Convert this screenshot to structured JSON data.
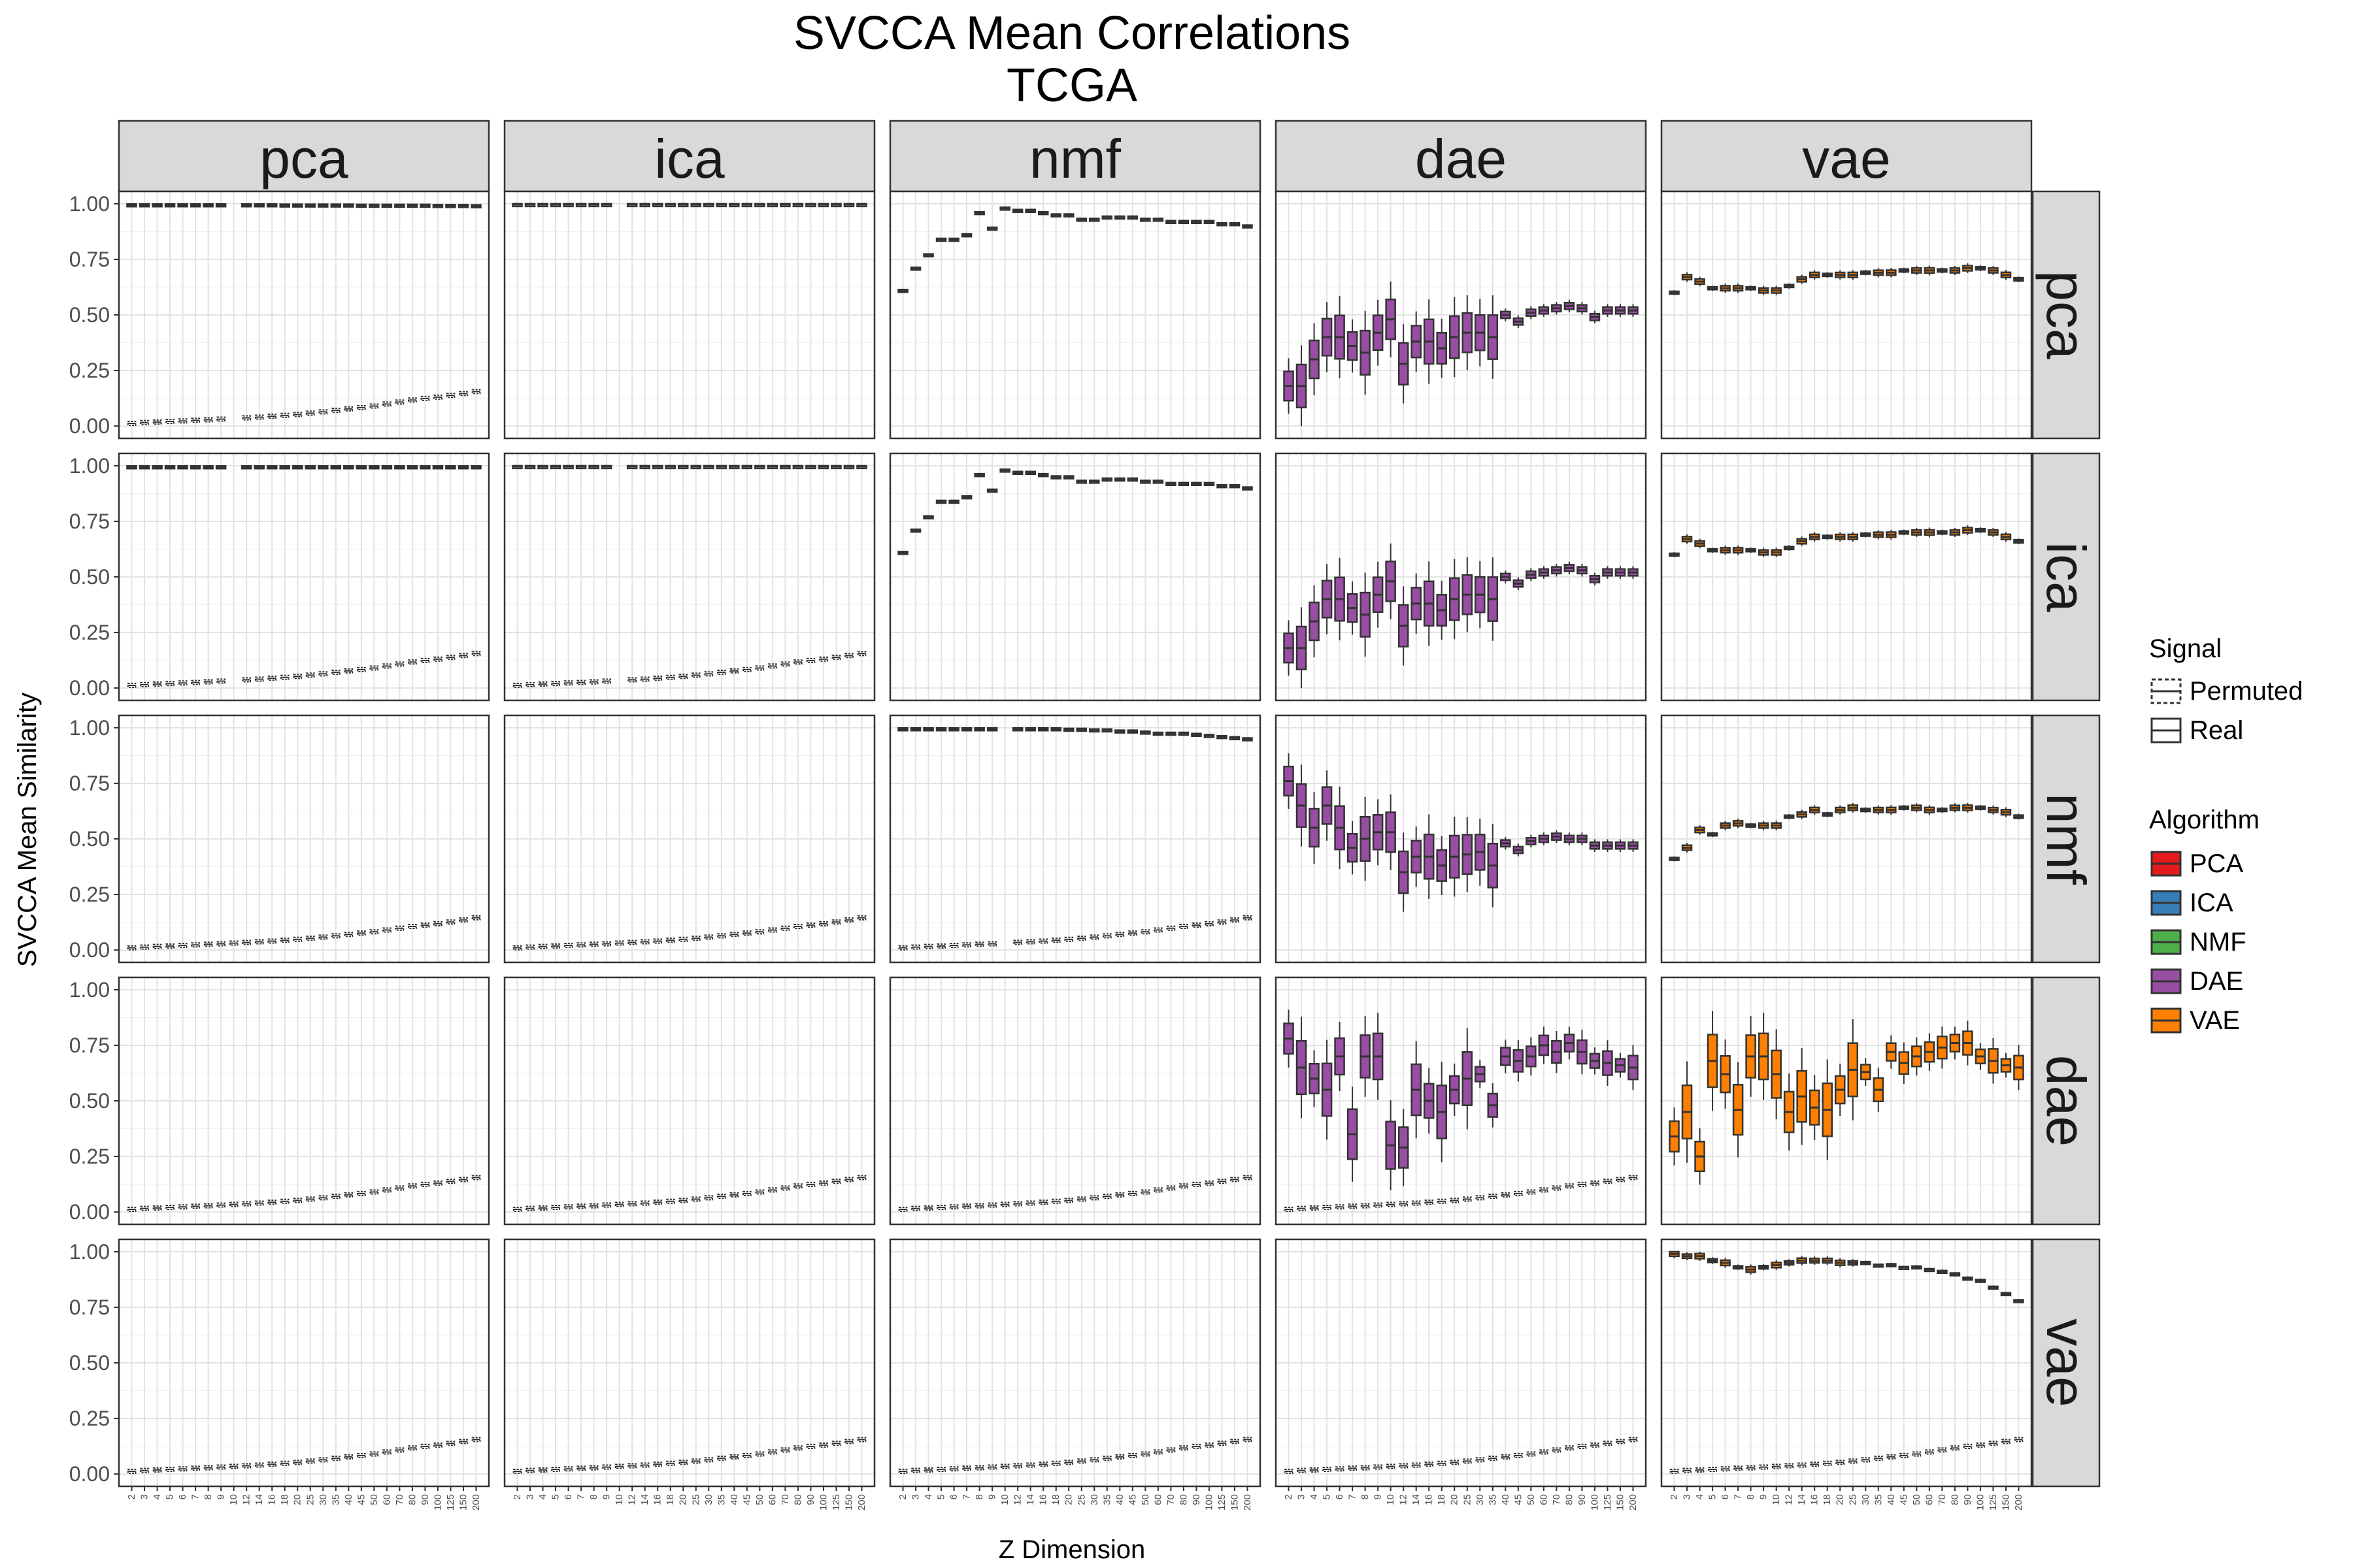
{
  "chart_data": {
    "type": "box",
    "title": [
      "SVCCA Mean Correlations",
      "TCGA"
    ],
    "xlabel": "Z Dimension",
    "ylabel": "SVCCA Mean Similarity",
    "ylim": [
      0,
      1
    ],
    "y_ticks": [
      "0.00",
      "0.25",
      "0.50",
      "0.75",
      "1.00"
    ],
    "x_categories": [
      "2",
      "3",
      "4",
      "5",
      "6",
      "7",
      "8",
      "9",
      "10",
      "12",
      "14",
      "16",
      "18",
      "20",
      "25",
      "30",
      "35",
      "40",
      "45",
      "50",
      "60",
      "70",
      "80",
      "90",
      "100",
      "125",
      "150",
      "200"
    ],
    "columns": [
      "pca",
      "ica",
      "nmf",
      "dae",
      "vae"
    ],
    "rows": [
      "pca",
      "ica",
      "nmf",
      "dae",
      "vae"
    ],
    "missing_x": [
      {
        "row": "pca",
        "col": "pca",
        "x": "10"
      },
      {
        "row": "pca",
        "col": "ica",
        "x": "10"
      },
      {
        "row": "ica",
        "col": "pca",
        "x": "10"
      },
      {
        "row": "ica",
        "col": "ica",
        "x": "10"
      },
      {
        "row": "nmf",
        "col": "nmf",
        "x": "10"
      }
    ],
    "permuted_series": [
      {
        "row": "pca",
        "col": "pca",
        "values": [
          0.012,
          0.016,
          0.018,
          0.021,
          0.023,
          0.026,
          0.028,
          0.031,
          0.034,
          0.037,
          0.04,
          0.044,
          0.048,
          0.052,
          0.058,
          0.064,
          0.071,
          0.077,
          0.083,
          0.09,
          0.099,
          0.108,
          0.117,
          0.124,
          0.13,
          0.138,
          0.146,
          0.155
        ]
      },
      {
        "row": "ica",
        "col": "pca",
        "values": [
          0.012,
          0.015,
          0.018,
          0.02,
          0.023,
          0.025,
          0.028,
          0.031,
          0.034,
          0.037,
          0.04,
          0.044,
          0.048,
          0.052,
          0.058,
          0.064,
          0.071,
          0.077,
          0.083,
          0.09,
          0.099,
          0.108,
          0.117,
          0.124,
          0.13,
          0.138,
          0.146,
          0.155
        ]
      },
      {
        "row": "ica",
        "col": "ica",
        "values": [
          0.012,
          0.015,
          0.018,
          0.02,
          0.023,
          0.025,
          0.028,
          0.031,
          0.034,
          0.037,
          0.04,
          0.044,
          0.048,
          0.052,
          0.058,
          0.064,
          0.071,
          0.077,
          0.083,
          0.09,
          0.099,
          0.108,
          0.117,
          0.124,
          0.13,
          0.138,
          0.146,
          0.155
        ]
      },
      {
        "row": "nmf",
        "col": "pca",
        "values": [
          0.01,
          0.013,
          0.016,
          0.018,
          0.021,
          0.023,
          0.026,
          0.028,
          0.031,
          0.034,
          0.037,
          0.04,
          0.044,
          0.048,
          0.053,
          0.058,
          0.064,
          0.07,
          0.076,
          0.082,
          0.09,
          0.098,
          0.106,
          0.112,
          0.118,
          0.126,
          0.135,
          0.145
        ]
      },
      {
        "row": "nmf",
        "col": "ica",
        "values": [
          0.01,
          0.013,
          0.016,
          0.018,
          0.021,
          0.023,
          0.026,
          0.028,
          0.031,
          0.034,
          0.037,
          0.04,
          0.044,
          0.048,
          0.053,
          0.058,
          0.064,
          0.07,
          0.076,
          0.082,
          0.09,
          0.098,
          0.106,
          0.112,
          0.118,
          0.126,
          0.135,
          0.145
        ]
      },
      {
        "row": "nmf",
        "col": "nmf",
        "values": [
          0.01,
          0.013,
          0.016,
          0.018,
          0.021,
          0.023,
          0.026,
          0.028,
          0.031,
          0.034,
          0.037,
          0.04,
          0.044,
          0.048,
          0.053,
          0.058,
          0.064,
          0.07,
          0.076,
          0.082,
          0.09,
          0.098,
          0.106,
          0.112,
          0.118,
          0.126,
          0.135,
          0.145
        ]
      },
      {
        "row": "dae",
        "col": "pca",
        "values": [
          0.012,
          0.016,
          0.018,
          0.021,
          0.023,
          0.026,
          0.028,
          0.031,
          0.034,
          0.037,
          0.04,
          0.044,
          0.048,
          0.052,
          0.058,
          0.064,
          0.071,
          0.077,
          0.083,
          0.09,
          0.099,
          0.108,
          0.117,
          0.124,
          0.13,
          0.138,
          0.146,
          0.155
        ]
      },
      {
        "row": "dae",
        "col": "ica",
        "values": [
          0.012,
          0.016,
          0.018,
          0.021,
          0.023,
          0.026,
          0.028,
          0.031,
          0.034,
          0.037,
          0.04,
          0.044,
          0.048,
          0.052,
          0.058,
          0.064,
          0.071,
          0.077,
          0.083,
          0.09,
          0.099,
          0.108,
          0.117,
          0.124,
          0.13,
          0.138,
          0.146,
          0.155
        ]
      },
      {
        "row": "dae",
        "col": "nmf",
        "values": [
          0.012,
          0.016,
          0.018,
          0.021,
          0.023,
          0.026,
          0.028,
          0.031,
          0.034,
          0.037,
          0.04,
          0.044,
          0.048,
          0.052,
          0.058,
          0.064,
          0.071,
          0.077,
          0.083,
          0.09,
          0.099,
          0.108,
          0.117,
          0.124,
          0.13,
          0.138,
          0.146,
          0.155
        ]
      },
      {
        "row": "dae",
        "col": "dae",
        "values": [
          0.012,
          0.016,
          0.018,
          0.021,
          0.023,
          0.026,
          0.028,
          0.031,
          0.034,
          0.037,
          0.04,
          0.044,
          0.048,
          0.052,
          0.058,
          0.064,
          0.071,
          0.077,
          0.083,
          0.09,
          0.099,
          0.108,
          0.117,
          0.124,
          0.13,
          0.138,
          0.146,
          0.155
        ]
      },
      {
        "row": "vae",
        "col": "pca",
        "values": [
          0.012,
          0.016,
          0.018,
          0.021,
          0.023,
          0.026,
          0.028,
          0.031,
          0.034,
          0.037,
          0.04,
          0.044,
          0.048,
          0.052,
          0.058,
          0.064,
          0.071,
          0.077,
          0.083,
          0.09,
          0.099,
          0.108,
          0.117,
          0.124,
          0.13,
          0.138,
          0.146,
          0.155
        ]
      },
      {
        "row": "vae",
        "col": "ica",
        "values": [
          0.012,
          0.016,
          0.018,
          0.021,
          0.023,
          0.026,
          0.028,
          0.031,
          0.034,
          0.037,
          0.04,
          0.044,
          0.048,
          0.052,
          0.058,
          0.064,
          0.071,
          0.077,
          0.083,
          0.09,
          0.099,
          0.108,
          0.117,
          0.124,
          0.13,
          0.138,
          0.146,
          0.155
        ]
      },
      {
        "row": "vae",
        "col": "nmf",
        "values": [
          0.012,
          0.016,
          0.018,
          0.021,
          0.023,
          0.026,
          0.028,
          0.031,
          0.034,
          0.037,
          0.04,
          0.044,
          0.048,
          0.052,
          0.058,
          0.064,
          0.071,
          0.077,
          0.083,
          0.09,
          0.099,
          0.108,
          0.117,
          0.124,
          0.13,
          0.138,
          0.146,
          0.155
        ]
      },
      {
        "row": "vae",
        "col": "dae",
        "values": [
          0.012,
          0.016,
          0.018,
          0.021,
          0.023,
          0.026,
          0.028,
          0.031,
          0.034,
          0.037,
          0.04,
          0.044,
          0.048,
          0.052,
          0.058,
          0.064,
          0.071,
          0.077,
          0.083,
          0.09,
          0.099,
          0.108,
          0.117,
          0.124,
          0.13,
          0.138,
          0.146,
          0.155
        ]
      },
      {
        "row": "vae",
        "col": "vae",
        "values": [
          0.012,
          0.016,
          0.018,
          0.021,
          0.023,
          0.026,
          0.028,
          0.031,
          0.034,
          0.037,
          0.04,
          0.044,
          0.048,
          0.052,
          0.058,
          0.064,
          0.071,
          0.077,
          0.083,
          0.09,
          0.099,
          0.108,
          0.117,
          0.124,
          0.13,
          0.138,
          0.146,
          0.155
        ]
      }
    ],
    "real_series": [
      {
        "row": "pca",
        "col": "pca",
        "fill": false,
        "values": [
          0.995,
          0.995,
          0.995,
          0.995,
          0.995,
          0.995,
          0.995,
          0.995,
          0.995,
          0.995,
          0.995,
          0.995,
          0.994,
          0.994,
          0.994,
          0.994,
          0.994,
          0.994,
          0.993,
          0.993,
          0.993,
          0.993,
          0.993,
          0.993,
          0.992,
          0.992,
          0.992,
          0.991
        ]
      },
      {
        "row": "pca",
        "col": "ica",
        "fill": false,
        "values": [
          0.997,
          0.997,
          0.997,
          0.997,
          0.997,
          0.997,
          0.997,
          0.997,
          0.997,
          0.997,
          0.997,
          0.997,
          0.997,
          0.997,
          0.997,
          0.997,
          0.997,
          0.997,
          0.997,
          0.997,
          0.997,
          0.997,
          0.997,
          0.997,
          0.997,
          0.997,
          0.997,
          0.997
        ]
      },
      {
        "row": "pca",
        "col": "nmf",
        "fill": false,
        "values": [
          0.61,
          0.71,
          0.77,
          0.84,
          0.84,
          0.86,
          0.96,
          0.89,
          0.98,
          0.97,
          0.97,
          0.96,
          0.95,
          0.95,
          0.93,
          0.93,
          0.94,
          0.94,
          0.94,
          0.93,
          0.93,
          0.92,
          0.92,
          0.92,
          0.92,
          0.91,
          0.91,
          0.9
        ]
      },
      {
        "row": "pca",
        "col": "dae",
        "fill": true,
        "values": [
          0.18,
          0.18,
          0.3,
          0.4,
          0.4,
          0.36,
          0.33,
          0.42,
          0.48,
          0.28,
          0.38,
          0.38,
          0.35,
          0.4,
          0.42,
          0.42,
          0.4,
          0.5,
          0.47,
          0.51,
          0.52,
          0.53,
          0.54,
          0.53,
          0.49,
          0.52,
          0.52,
          0.52
        ]
      },
      {
        "row": "pca",
        "col": "vae",
        "fill": true,
        "values": [
          0.6,
          0.67,
          0.65,
          0.62,
          0.62,
          0.62,
          0.62,
          0.61,
          0.61,
          0.63,
          0.66,
          0.68,
          0.68,
          0.68,
          0.68,
          0.69,
          0.69,
          0.69,
          0.7,
          0.7,
          0.7,
          0.7,
          0.7,
          0.71,
          0.71,
          0.7,
          0.68,
          0.66
        ]
      },
      {
        "row": "ica",
        "col": "pca",
        "fill": false,
        "values": [
          0.995,
          0.995,
          0.995,
          0.995,
          0.995,
          0.995,
          0.995,
          0.995,
          0.995,
          0.995,
          0.995,
          0.995,
          0.995,
          0.995,
          0.995,
          0.995,
          0.995,
          0.995,
          0.995,
          0.995,
          0.995,
          0.995,
          0.995,
          0.995,
          0.995,
          0.995,
          0.995,
          0.995
        ]
      },
      {
        "row": "ica",
        "col": "ica",
        "fill": false,
        "values": [
          0.997,
          0.997,
          0.997,
          0.997,
          0.997,
          0.997,
          0.997,
          0.997,
          0.997,
          0.997,
          0.997,
          0.997,
          0.997,
          0.997,
          0.997,
          0.997,
          0.997,
          0.997,
          0.997,
          0.997,
          0.997,
          0.997,
          0.997,
          0.997,
          0.997,
          0.997,
          0.997,
          0.997
        ]
      },
      {
        "row": "ica",
        "col": "nmf",
        "fill": false,
        "values": [
          0.61,
          0.71,
          0.77,
          0.84,
          0.84,
          0.86,
          0.96,
          0.89,
          0.98,
          0.97,
          0.97,
          0.96,
          0.95,
          0.95,
          0.93,
          0.93,
          0.94,
          0.94,
          0.94,
          0.93,
          0.93,
          0.92,
          0.92,
          0.92,
          0.92,
          0.91,
          0.91,
          0.9
        ]
      },
      {
        "row": "ica",
        "col": "dae",
        "fill": true,
        "values": [
          0.18,
          0.18,
          0.3,
          0.4,
          0.4,
          0.36,
          0.33,
          0.42,
          0.48,
          0.28,
          0.38,
          0.38,
          0.35,
          0.4,
          0.42,
          0.42,
          0.4,
          0.5,
          0.47,
          0.51,
          0.52,
          0.53,
          0.54,
          0.53,
          0.49,
          0.52,
          0.52,
          0.52
        ]
      },
      {
        "row": "ica",
        "col": "vae",
        "fill": true,
        "values": [
          0.6,
          0.67,
          0.65,
          0.62,
          0.62,
          0.62,
          0.62,
          0.61,
          0.61,
          0.63,
          0.66,
          0.68,
          0.68,
          0.68,
          0.68,
          0.69,
          0.69,
          0.69,
          0.7,
          0.7,
          0.7,
          0.7,
          0.7,
          0.71,
          0.71,
          0.7,
          0.68,
          0.66
        ]
      },
      {
        "row": "nmf",
        "col": "nmf",
        "fill": false,
        "values": [
          0.995,
          0.995,
          0.995,
          0.995,
          0.995,
          0.995,
          0.995,
          0.995,
          0.995,
          0.995,
          0.995,
          0.995,
          0.995,
          0.993,
          0.993,
          0.99,
          0.99,
          0.985,
          0.985,
          0.98,
          0.975,
          0.975,
          0.975,
          0.97,
          0.965,
          0.96,
          0.955,
          0.95
        ]
      },
      {
        "row": "nmf",
        "col": "dae",
        "fill": true,
        "values": [
          0.76,
          0.65,
          0.55,
          0.65,
          0.55,
          0.46,
          0.5,
          0.53,
          0.53,
          0.35,
          0.42,
          0.42,
          0.38,
          0.42,
          0.43,
          0.44,
          0.38,
          0.48,
          0.45,
          0.49,
          0.5,
          0.51,
          0.5,
          0.5,
          0.47,
          0.47,
          0.47,
          0.47
        ]
      },
      {
        "row": "nmf",
        "col": "vae",
        "fill": true,
        "values": [
          0.41,
          0.46,
          0.54,
          0.52,
          0.56,
          0.57,
          0.56,
          0.56,
          0.56,
          0.6,
          0.61,
          0.63,
          0.61,
          0.63,
          0.64,
          0.63,
          0.63,
          0.63,
          0.64,
          0.64,
          0.63,
          0.63,
          0.64,
          0.64,
          0.64,
          0.63,
          0.62,
          0.6
        ]
      },
      {
        "row": "dae",
        "col": "dae",
        "fill": true,
        "values": [
          0.78,
          0.65,
          0.6,
          0.55,
          0.7,
          0.35,
          0.7,
          0.7,
          0.3,
          0.29,
          0.55,
          0.5,
          0.45,
          0.55,
          0.6,
          0.62,
          0.48,
          0.7,
          0.68,
          0.7,
          0.75,
          0.72,
          0.76,
          0.72,
          0.68,
          0.67,
          0.66,
          0.65
        ]
      },
      {
        "row": "dae",
        "col": "vae",
        "fill": true,
        "values": [
          0.34,
          0.45,
          0.25,
          0.68,
          0.62,
          0.46,
          0.7,
          0.7,
          0.62,
          0.45,
          0.52,
          0.47,
          0.46,
          0.55,
          0.64,
          0.63,
          0.55,
          0.72,
          0.67,
          0.7,
          0.72,
          0.74,
          0.76,
          0.76,
          0.7,
          0.68,
          0.66,
          0.65
        ]
      },
      {
        "row": "vae",
        "col": "vae",
        "fill": true,
        "values": [
          0.99,
          0.98,
          0.98,
          0.96,
          0.95,
          0.93,
          0.92,
          0.93,
          0.94,
          0.95,
          0.96,
          0.96,
          0.96,
          0.95,
          0.95,
          0.95,
          0.94,
          0.94,
          0.93,
          0.93,
          0.92,
          0.91,
          0.9,
          0.88,
          0.87,
          0.84,
          0.81,
          0.78
        ]
      }
    ],
    "legend": {
      "signal_title": "Signal",
      "signal_items": [
        "Permuted",
        "Real"
      ],
      "algorithm_title": "Algorithm",
      "algorithm_items": [
        {
          "label": "PCA",
          "color": "#e41a1c"
        },
        {
          "label": "ICA",
          "color": "#377eb8"
        },
        {
          "label": "NMF",
          "color": "#4daf4a"
        },
        {
          "label": "DAE",
          "color": "#984ea3"
        },
        {
          "label": "VAE",
          "color": "#ff7f00"
        }
      ]
    },
    "legend_position": "right",
    "grid": true
  }
}
